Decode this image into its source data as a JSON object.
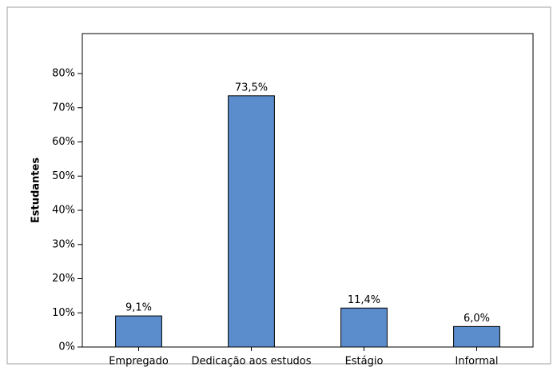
{
  "chart_data": {
    "type": "bar",
    "y_label": "Estudantes",
    "categories": [
      "Empregado",
      "Dedicação aos estudos",
      "Estágio",
      "Informal"
    ],
    "values": [
      9.1,
      73.5,
      11.4,
      6.0
    ],
    "value_labels": [
      "9,1%",
      "73,5%",
      "11,4%",
      "6,0%"
    ],
    "color": "#5b8ccc",
    "ylim": [
      0,
      91.7
    ],
    "yticks": [
      {
        "value": 0,
        "label": "0%"
      },
      {
        "value": 10,
        "label": "10%"
      },
      {
        "value": 20,
        "label": "20%"
      },
      {
        "value": 30,
        "label": "30%"
      },
      {
        "value": 40,
        "label": "40%"
      },
      {
        "value": 50,
        "label": "50%"
      },
      {
        "value": 60,
        "label": "60%"
      },
      {
        "value": 70,
        "label": "70%"
      },
      {
        "value": 80,
        "label": "80%"
      }
    ],
    "grid": false
  }
}
